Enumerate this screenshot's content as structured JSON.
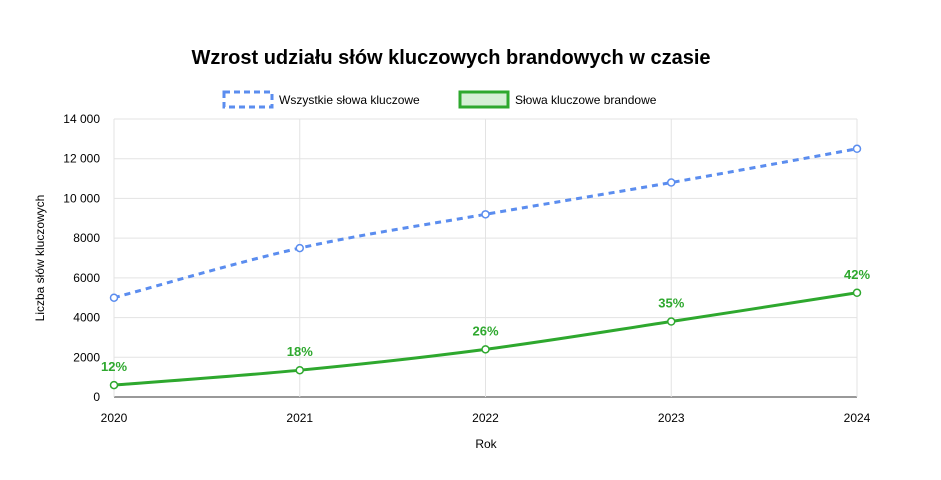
{
  "chart_data": {
    "type": "line",
    "title": "Wzrost udziału słów kluczowych brandowych w czasie",
    "xlabel": "Rok",
    "ylabel": "Liczba słów kluczowych",
    "x": [
      "2020",
      "2021",
      "2022",
      "2023",
      "2024"
    ],
    "ylim": [
      0,
      14000
    ],
    "yticks": [
      0,
      2000,
      4000,
      6000,
      8000,
      10000,
      12000,
      14000
    ],
    "ytick_labels": [
      "0",
      "2000",
      "4000",
      "6000",
      "8000",
      "10 000",
      "12 000",
      "14 000"
    ],
    "grid": true,
    "legend_position": "top",
    "series": [
      {
        "name": "Wszystkie słowa kluczowe",
        "values": [
          5000,
          7500,
          9200,
          10800,
          12500
        ],
        "color": "#5b8def",
        "style": "dashed"
      },
      {
        "name": "Słowa kluczowe brandowe",
        "values": [
          600,
          1350,
          2400,
          3800,
          5250
        ],
        "color": "#2ea82e",
        "style": "solid",
        "data_labels": [
          "12%",
          "18%",
          "26%",
          "35%",
          "42%"
        ]
      }
    ]
  }
}
